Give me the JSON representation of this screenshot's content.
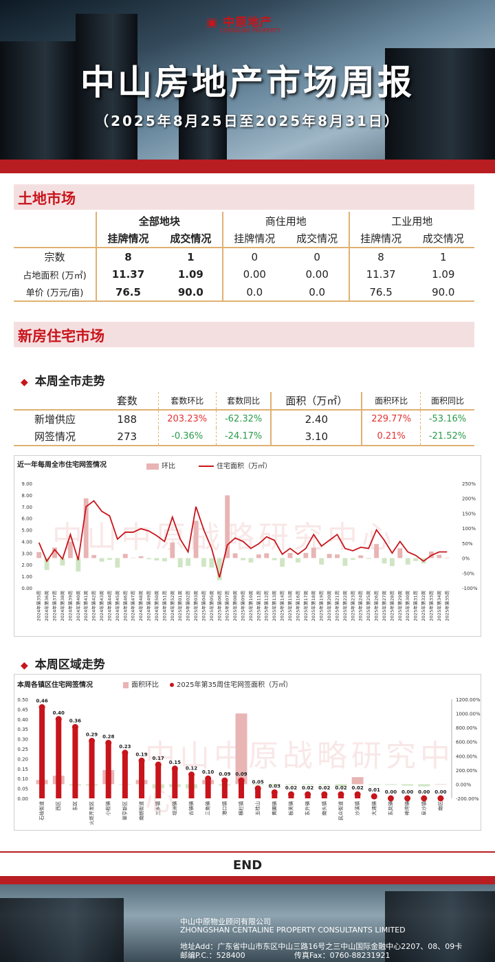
{
  "header": {
    "logo_text": "中原地产",
    "logo_sub": "CENTALINE PROPERTY",
    "title": "中山房地产市场周报",
    "date_range": "（2025年8月25日至2025年8月31日）"
  },
  "land": {
    "section_title": "土地市场",
    "group_all": "全部地块",
    "group_res": "商住用地",
    "group_ind": "工业用地",
    "col_list": "挂牌情况",
    "col_deal": "成交情况",
    "rows": [
      {
        "label": "宗数",
        "v": [
          "8",
          "1",
          "0",
          "0",
          "8",
          "1"
        ]
      },
      {
        "label": "占地面积 (万㎡)",
        "v": [
          "11.37",
          "1.09",
          "0.00",
          "0.00",
          "11.37",
          "1.09"
        ]
      },
      {
        "label": "单价 (万元/亩)",
        "v": [
          "76.5",
          "90.0",
          "0.0",
          "0.0",
          "76.5",
          "90.0"
        ]
      }
    ]
  },
  "newhome": {
    "section_title": "新房住宅市场",
    "sub1": "本周全市走势",
    "sub2": "本周区域走势",
    "headers": [
      "套数",
      "套数环比",
      "套数同比",
      "面积（万㎡）",
      "面积环比",
      "面积同比"
    ],
    "rows": [
      {
        "label": "新增供应",
        "v": [
          "188",
          "203.23%",
          "-62.32%",
          "2.40",
          "229.77%",
          "-53.16%"
        ]
      },
      {
        "label": "网签情况",
        "v": [
          "273",
          "-0.36%",
          "-24.17%",
          "3.10",
          "0.21%",
          "-21.52%"
        ]
      }
    ]
  },
  "watermark": "中山中原战略研究中心",
  "chart_data": [
    {
      "type": "bar+line",
      "title": "近一年每周全市住宅网签情况",
      "legend": [
        "环比",
        "住宅面积（万㎡）"
      ],
      "colors": {
        "bar": "#e8b4b4",
        "line": "#c8141b"
      },
      "ylim_left": [
        0,
        9
      ],
      "yticks_left": [
        "0.00",
        "1.00",
        "2.00",
        "3.00",
        "4.00",
        "5.00",
        "6.00",
        "7.00",
        "8.00",
        "9.00"
      ],
      "ylim_right": [
        -100,
        250
      ],
      "yticks_right": [
        "-100%",
        "-50%",
        "0%",
        "50%",
        "100%",
        "150%",
        "200%",
        "250%"
      ],
      "categories": [
        "2024年第35周",
        "2024年第36周",
        "2024年第37周",
        "2024年第38周",
        "2024年第39周",
        "2024年第40周",
        "2024年第41周",
        "2024年第42周",
        "2024年第43周",
        "2024年第44周",
        "2024年第45周",
        "2024年第46周",
        "2024年第47周",
        "2024年第48周",
        "2024年第49周",
        "2024年第50周",
        "2024年第51周",
        "2024年第52周",
        "2025年第01周",
        "2025年第02周",
        "2025年第03周",
        "2025年第04周",
        "2025年第05周",
        "2025年第06周",
        "2025年第07周",
        "2025年第08周",
        "2025年第09周",
        "2025年第10周",
        "2025年第11周",
        "2025年第12周",
        "2025年第13周",
        "2025年第14周",
        "2025年第15周",
        "2025年第16周",
        "2025年第17周",
        "2025年第18周",
        "2025年第19周",
        "2025年第20周",
        "2025年第21周",
        "2025年第22周",
        "2025年第23周",
        "2025年第24周",
        "2025年第25周",
        "2025年第26周",
        "2025年第27周",
        "2025年第28周",
        "2025年第29周",
        "2025年第30周",
        "2025年第31周",
        "2025年第32周",
        "2025年第33周",
        "2025年第34周",
        "2025年第35周"
      ],
      "series": [
        {
          "name": "住宅面积（万㎡）",
          "axis": "left",
          "values": [
            3.9,
            2.3,
            3.3,
            2.5,
            4.6,
            2.4,
            7.0,
            7.5,
            6.6,
            6.2,
            4.2,
            4.8,
            4.8,
            5.1,
            4.9,
            4.5,
            4.0,
            6.1,
            4.2,
            3.1,
            7.0,
            5.0,
            3.4,
            0.9,
            3.7,
            4.3,
            4.0,
            3.4,
            3.8,
            4.4,
            4.1,
            2.9,
            3.4,
            2.9,
            3.4,
            4.6,
            3.6,
            4.1,
            4.6,
            3.4,
            3.2,
            3.5,
            3.4,
            5.0,
            4.1,
            3.0,
            4.0,
            3.1,
            2.8,
            2.3,
            2.8,
            3.1,
            3.1
          ]
        },
        {
          "name": "环比",
          "axis": "right",
          "values": [
            20,
            -40,
            35,
            -25,
            55,
            -45,
            200,
            10,
            -12,
            -6,
            -32,
            14,
            0,
            6,
            -4,
            -8,
            -11,
            52,
            -31,
            -26,
            125,
            -29,
            -32,
            -74,
            210,
            16,
            -7,
            -15,
            12,
            16,
            -7,
            -29,
            17,
            -15,
            17,
            35,
            -22,
            14,
            12,
            -26,
            -6,
            9,
            -3,
            47,
            -18,
            -27,
            33,
            -22,
            -10,
            -18,
            22,
            11,
            0.21
          ]
        }
      ]
    },
    {
      "type": "bar+dot",
      "title": "本周各镇区住宅网签情况",
      "legend": [
        "面积环比",
        "2025年第35周住宅网签面积（万㎡）"
      ],
      "colors": {
        "bar": "#e8b4b4",
        "dot": "#c8141b"
      },
      "ylim_left": [
        0,
        0.5
      ],
      "yticks_left": [
        "0.00",
        "0.05",
        "0.10",
        "0.15",
        "0.20",
        "0.25",
        "0.30",
        "0.35",
        "0.40",
        "0.45",
        "0.50"
      ],
      "ylim_right": [
        -200,
        1200
      ],
      "yticks_right": [
        "-200.00%",
        "0.00%",
        "200.00%",
        "400.00%",
        "600.00%",
        "800.00%",
        "1000.00%",
        "1200.00%"
      ],
      "categories": [
        "石岐街道",
        "西区",
        "东区",
        "火炬开发区",
        "小榄镇",
        "翠亨新区",
        "南朗街道",
        "三乡镇",
        "坦洲镇",
        "古镇镇",
        "三角镇",
        "港口镇",
        "横栏镇",
        "五桂山",
        "黄圃镇",
        "板芙镇",
        "东升镇",
        "南头镇",
        "民众街道",
        "沙溪镇",
        "大涌镇",
        "东凤镇",
        "神湾镇",
        "阜沙镇",
        "南区"
      ],
      "labels": [
        "0.46",
        "0.40",
        "0.36",
        "0.29",
        "0.28",
        "0.23",
        "0.19",
        "0.17",
        "0.15",
        "0.12",
        "0.10",
        "0.09",
        "0.09",
        "0.05",
        "0.03",
        "0.02",
        "0.02",
        "0.02",
        "0.02",
        "0.02",
        "0.01",
        "0.00",
        "0.00",
        "0.00",
        "0.00"
      ],
      "series": [
        {
          "name": "2025年第35周住宅网签面积（万㎡）",
          "axis": "left",
          "values": [
            0.46,
            0.4,
            0.36,
            0.29,
            0.28,
            0.23,
            0.19,
            0.17,
            0.15,
            0.12,
            0.1,
            0.09,
            0.09,
            0.05,
            0.03,
            0.02,
            0.02,
            0.02,
            0.02,
            0.02,
            0.01,
            0.0,
            0.0,
            0.0,
            0.0
          ]
        },
        {
          "name": "面积环比",
          "axis": "right",
          "values": [
            60,
            120,
            -20,
            -20,
            200,
            -10,
            60,
            -60,
            -40,
            -60,
            60,
            -20,
            1000,
            -10,
            -20,
            -10,
            -10,
            -10,
            -30,
            100,
            -10,
            -10,
            -20,
            -30,
            0
          ]
        }
      ]
    }
  ],
  "end": "END",
  "footer": {
    "company_cn": "中山中原物业顾问有限公司",
    "company_en": "ZHONGSHAN CENTALINE PROPERTY CONSULTANTS LIMITED",
    "address": "地址Add：广东省中山市东区中山三路16号之三中山国际金融中心2207、08、09卡",
    "postcode": "邮编P.C.：528400",
    "fax": "传真Fax：0760-88231921"
  }
}
